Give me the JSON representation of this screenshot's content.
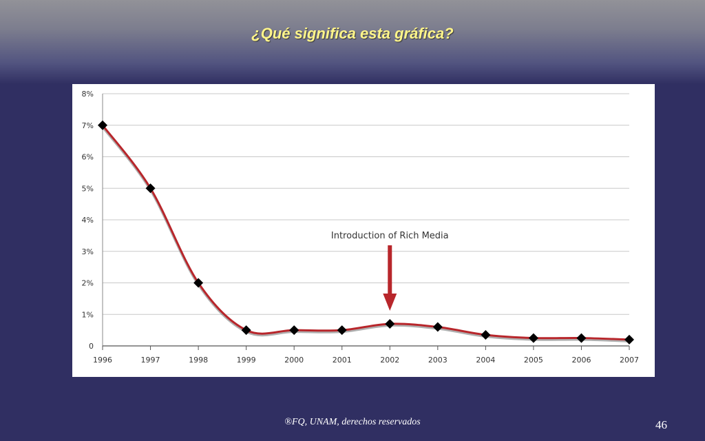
{
  "slide": {
    "title": "¿Qué significa esta gráfica?",
    "footer": "®FQ, UNAM, derechos reservados",
    "page_number": "46"
  },
  "colors": {
    "background": "#302f62",
    "title": "#fff58a",
    "line": "#b8262b",
    "marker": "#000000",
    "arrow": "#b8262b"
  },
  "chart_data": {
    "type": "line",
    "title": "",
    "xlabel": "",
    "ylabel": "",
    "x": [
      "1996",
      "1997",
      "1998",
      "1999",
      "2000",
      "2001",
      "2002",
      "2003",
      "2004",
      "2005",
      "2006",
      "2007"
    ],
    "series": [
      {
        "values": [
          7.0,
          5.0,
          2.0,
          0.5,
          0.5,
          0.5,
          0.7,
          0.6,
          0.35,
          0.25,
          0.25,
          0.2
        ]
      }
    ],
    "ylim": [
      0,
      8
    ],
    "yticks": [
      0,
      1,
      2,
      3,
      4,
      5,
      6,
      7,
      8
    ],
    "ytick_labels": [
      "0",
      "1%",
      "2%",
      "3%",
      "4%",
      "5%",
      "6%",
      "7%",
      "8%"
    ],
    "grid": true,
    "annotation": {
      "text": "Introduction of Rich Media",
      "x": "2002"
    }
  }
}
